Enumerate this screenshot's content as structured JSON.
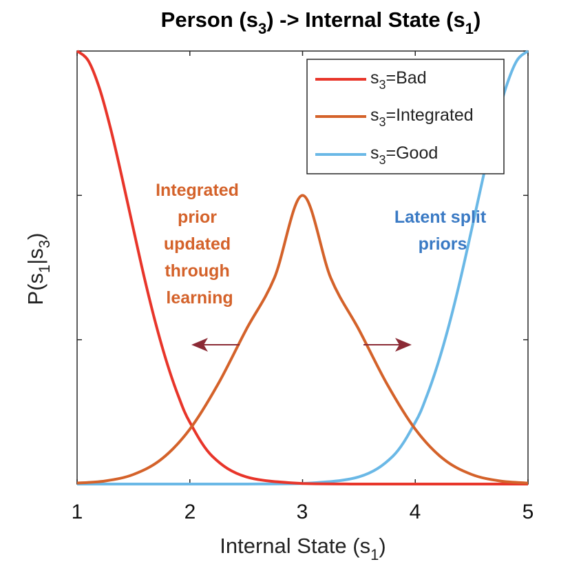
{
  "chart_data": {
    "type": "line",
    "title": {
      "prefix": "Person (s",
      "sub1": "3",
      "mid": ") -> Internal State (s",
      "sub2": "1",
      "suffix": ")"
    },
    "xlabel": {
      "prefix": "Internal State (s",
      "sub": "1",
      "suffix": ")"
    },
    "ylabel": {
      "p1": "P(s",
      "sub1": "1",
      "p2": "|s",
      "sub2": "3",
      "p3": ")"
    },
    "xlim": [
      1,
      5
    ],
    "ylim": [
      0,
      1.5
    ],
    "x_ticks": [
      "1",
      "2",
      "3",
      "4",
      "5"
    ],
    "y_ticks": [
      0.5,
      1.0,
      1.5
    ],
    "grid": false,
    "legend_position": "top-right",
    "series": [
      {
        "id": "bad",
        "legend": {
          "pre": "s",
          "sub": "3",
          "post": "=Bad"
        },
        "color": "#e8352a",
        "x": [
          1.0,
          1.1,
          1.2,
          1.3,
          1.4,
          1.5,
          1.6,
          1.7,
          1.8,
          1.9,
          2.0,
          2.2,
          2.5,
          3.0,
          3.5,
          4.0,
          4.5,
          5.0
        ],
        "y": [
          1.5,
          1.466,
          1.369,
          1.227,
          1.059,
          0.882,
          0.709,
          0.552,
          0.416,
          0.303,
          0.214,
          0.096,
          0.025,
          0.0017,
          5e-05,
          0.0,
          0.0,
          0.0
        ]
      },
      {
        "id": "integrated",
        "legend": {
          "pre": "s",
          "sub": "3",
          "post": "=Integrated"
        },
        "color": "#d4622a",
        "x": [
          1.0,
          1.25,
          1.5,
          1.75,
          2.0,
          2.25,
          2.5,
          2.75,
          3.0,
          3.25,
          3.5,
          3.75,
          4.0,
          4.25,
          4.5,
          4.75,
          5.0
        ],
        "y": [
          0.0033,
          0.0107,
          0.0333,
          0.0866,
          0.19,
          0.346,
          0.535,
          0.714,
          1.0,
          0.714,
          0.535,
          0.346,
          0.19,
          0.0866,
          0.0333,
          0.0107,
          0.0033
        ]
      },
      {
        "id": "good",
        "legend": {
          "pre": "s",
          "sub": "3",
          "post": "=Good"
        },
        "color": "#6ab8e6",
        "x": [
          1.0,
          1.5,
          2.0,
          2.5,
          3.0,
          3.5,
          3.8,
          4.0,
          4.1,
          4.2,
          4.3,
          4.4,
          4.5,
          4.6,
          4.7,
          4.8,
          4.9,
          5.0
        ],
        "y": [
          0.0,
          0.0,
          0.0,
          5e-05,
          0.0017,
          0.025,
          0.096,
          0.214,
          0.303,
          0.416,
          0.552,
          0.709,
          0.882,
          1.059,
          1.227,
          1.369,
          1.466,
          1.5
        ]
      }
    ],
    "annotations": [
      {
        "id": "integrated-prior",
        "lines": [
          "Integrated",
          "prior",
          "updated",
          "through",
          "learning"
        ],
        "color": "#d4622a"
      },
      {
        "id": "latent-split",
        "lines": [
          "Latent split",
          "priors"
        ],
        "color": "#3a7ac4"
      }
    ],
    "arrow_color": "#8b2a35"
  }
}
